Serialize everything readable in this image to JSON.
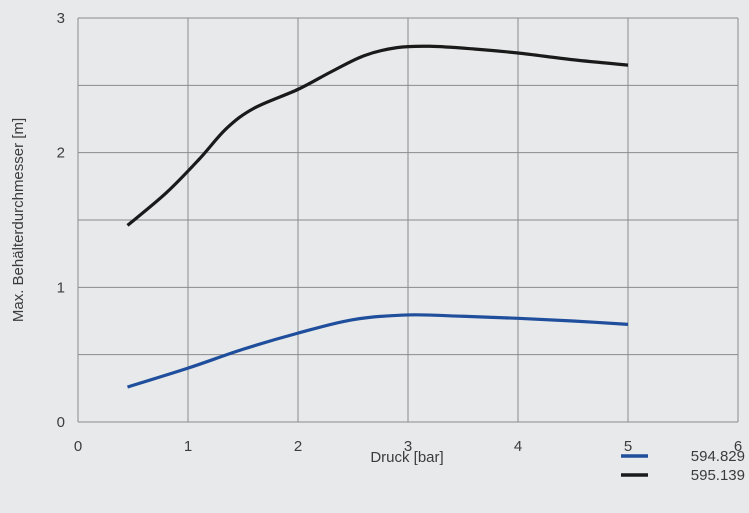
{
  "chart_data": {
    "type": "line",
    "title": "",
    "xlabel": "Druck [bar]",
    "ylabel": "Max. Behälterdurchmesser [m]",
    "xlim": [
      0,
      6
    ],
    "ylim": [
      0,
      3
    ],
    "x_ticks": [
      "0",
      "1",
      "2",
      "3",
      "4",
      "5",
      "6"
    ],
    "y_ticks": [
      "0",
      "1",
      "2",
      "3"
    ],
    "grid": true,
    "legend_position": "bottom-right",
    "series": [
      {
        "name": "594.829",
        "color": "#1f4e9c",
        "points": [
          [
            0.45,
            0.26
          ],
          [
            1.0,
            0.4
          ],
          [
            1.5,
            0.54
          ],
          [
            2.0,
            0.66
          ],
          [
            2.5,
            0.76
          ],
          [
            3.0,
            0.795
          ],
          [
            3.5,
            0.785
          ],
          [
            4.0,
            0.77
          ],
          [
            4.5,
            0.75
          ],
          [
            5.0,
            0.725
          ]
        ]
      },
      {
        "name": "595.139",
        "color": "#1a1a1a",
        "points": [
          [
            0.45,
            1.46
          ],
          [
            0.8,
            1.7
          ],
          [
            1.1,
            1.95
          ],
          [
            1.35,
            2.18
          ],
          [
            1.6,
            2.33
          ],
          [
            2.0,
            2.47
          ],
          [
            2.3,
            2.6
          ],
          [
            2.6,
            2.72
          ],
          [
            2.9,
            2.78
          ],
          [
            3.2,
            2.79
          ],
          [
            3.6,
            2.77
          ],
          [
            4.0,
            2.74
          ],
          [
            4.5,
            2.69
          ],
          [
            5.0,
            2.65
          ]
        ]
      }
    ]
  }
}
